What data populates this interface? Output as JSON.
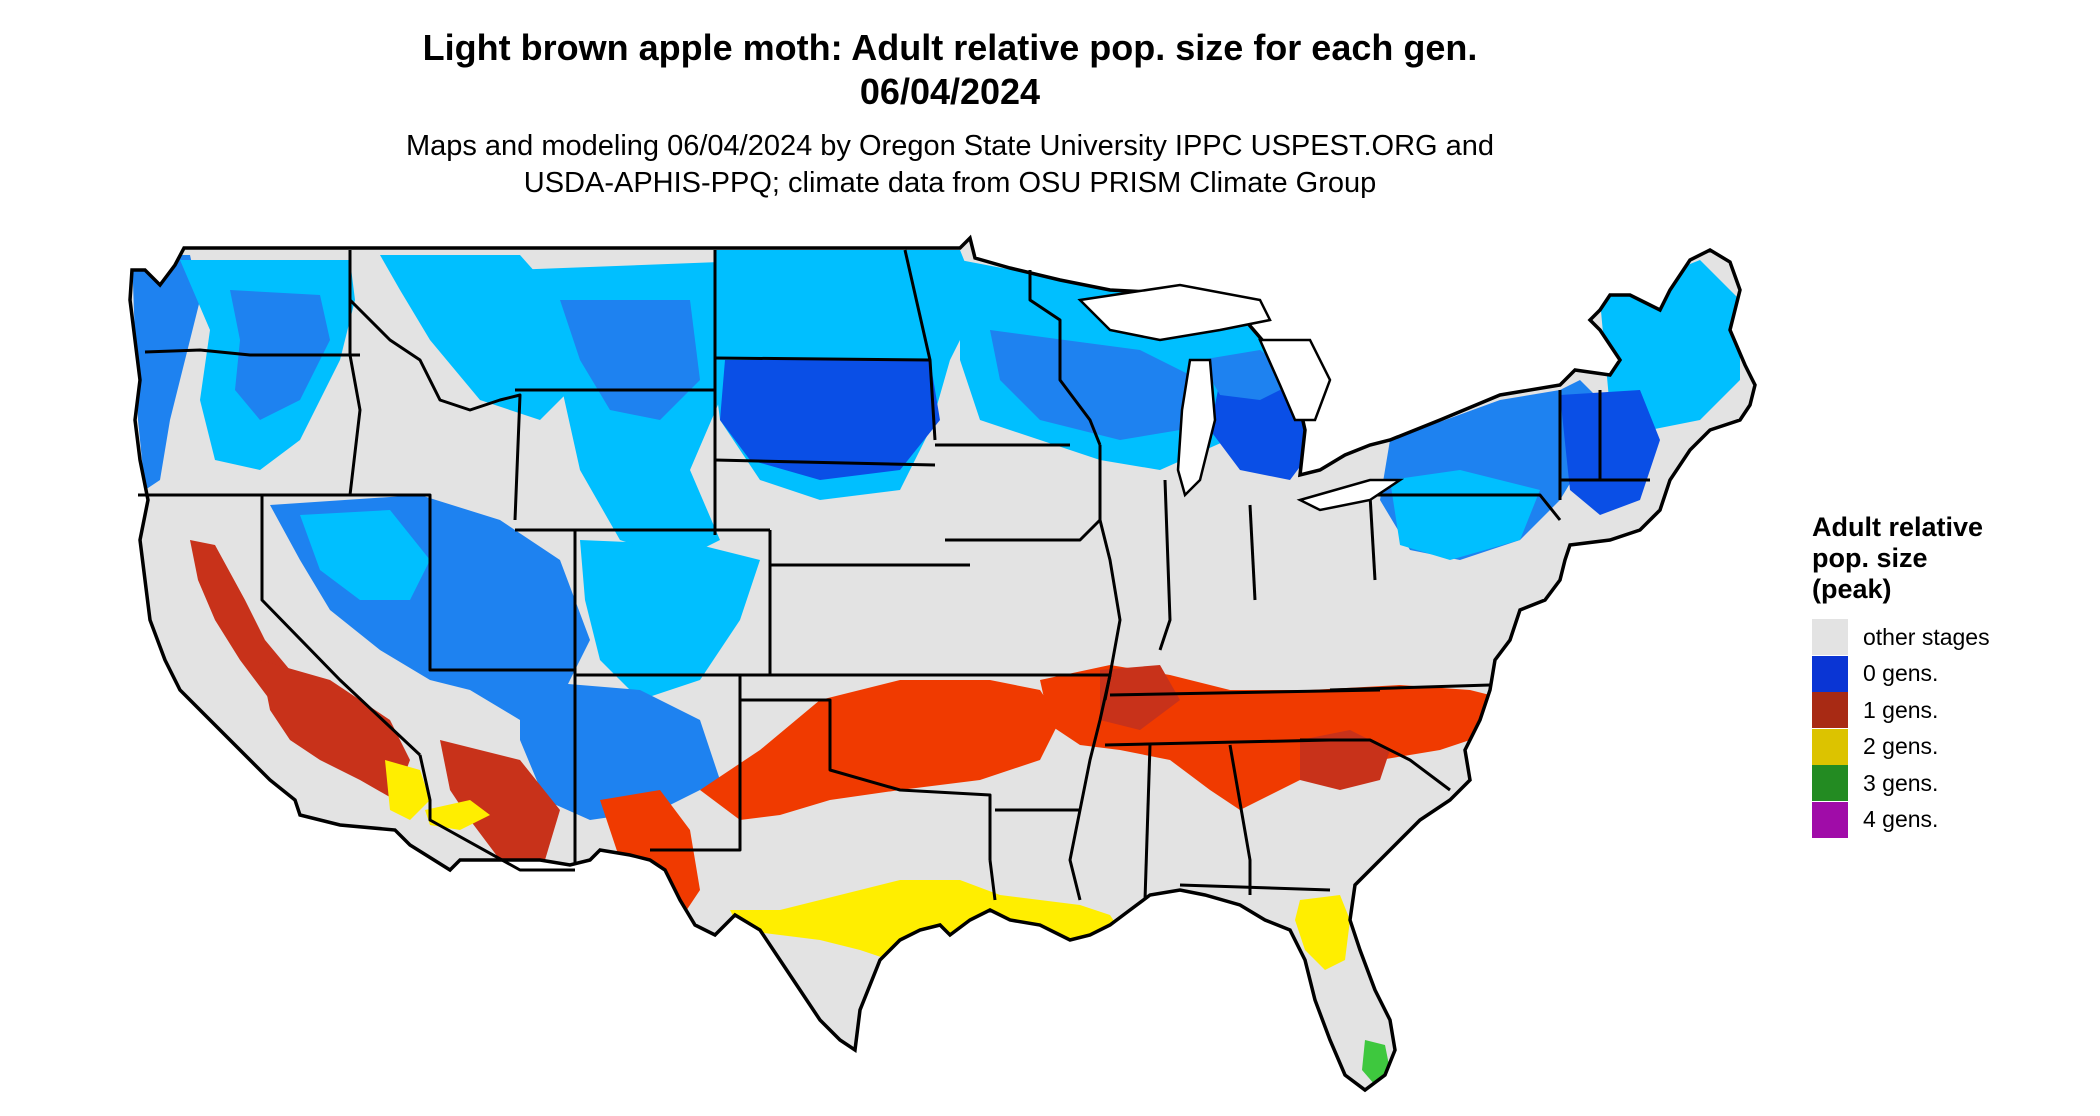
{
  "title_line1": "Light brown apple moth: Adult relative pop. size for each gen.",
  "title_line2": "06/04/2024",
  "subtitle_line1": "Maps and modeling 06/04/2024 by Oregon State University IPPC USPEST.ORG and",
  "subtitle_line2": "USDA-APHIS-PPQ; climate data from OSU PRISM Climate Group",
  "legend": {
    "title_line1": "Adult relative",
    "title_line2": "pop. size",
    "title_line3": "(peak)",
    "items": [
      {
        "label": "other stages",
        "color": "#e3e3e3"
      },
      {
        "label": "0 gens.",
        "color": "#0a35d4"
      },
      {
        "label": "1 gens.",
        "color": "#a82a14"
      },
      {
        "label": "2 gens.",
        "color": "#dcc300"
      },
      {
        "label": "3 gens.",
        "color": "#238b22"
      },
      {
        "label": "4 gens.",
        "color": "#a00ca8"
      }
    ]
  },
  "map_colors": {
    "background": "#e3e3e3",
    "light_blue": "#00bfff",
    "mid_blue": "#1e82f0",
    "dark_blue": "#0a4fe6",
    "orange_red": "#f03a00",
    "dark_red": "#c8321a",
    "yellow": "#ffee00",
    "green": "#3ec83e",
    "border": "#000000"
  }
}
